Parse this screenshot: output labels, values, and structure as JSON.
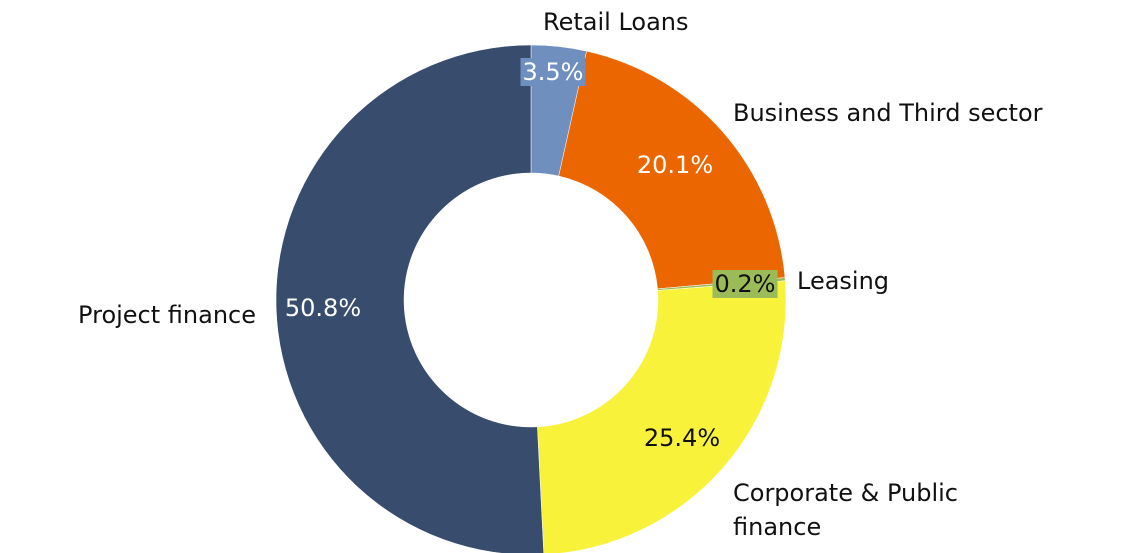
{
  "chart_data": {
    "type": "donut",
    "categories": [
      "Retail Loans",
      "Business and Third sector",
      "Leasing",
      "Corporate & Public finance",
      "Project finance"
    ],
    "values": [
      3.5,
      20.1,
      0.2,
      25.4,
      50.8
    ],
    "value_labels": [
      "3.5%",
      "20.1%",
      "0.2%",
      "25.4%",
      "50.8%"
    ],
    "colors": [
      "#6f8fbf",
      "#ec6600",
      "#9bbb59",
      "#f8f23a",
      "#384d6e"
    ]
  }
}
